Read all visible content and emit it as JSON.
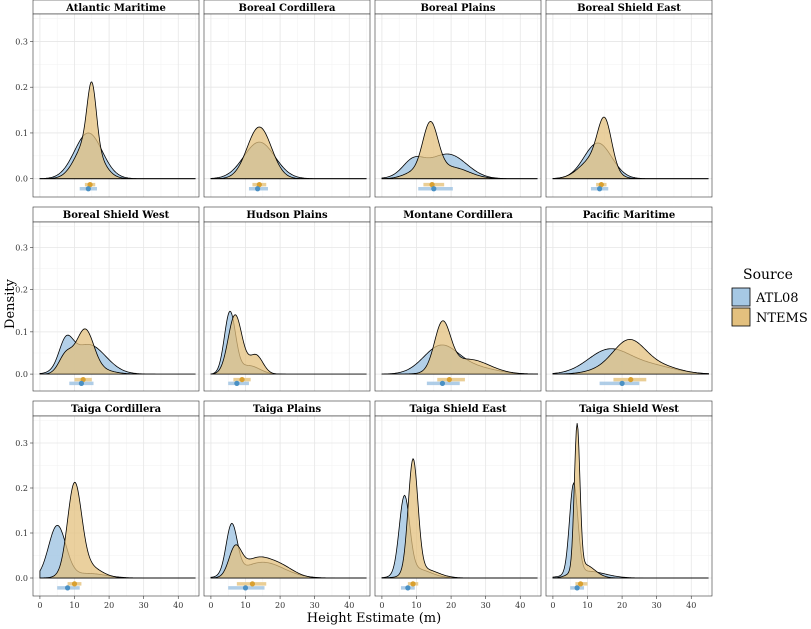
{
  "chart_data": {
    "type": "area",
    "title": "",
    "xlabel": "Height Estimate (m)",
    "ylabel": "Density",
    "xlim": [
      -2,
      46
    ],
    "ylim": [
      -0.04,
      0.36
    ],
    "x_ticks": [
      0,
      10,
      20,
      30,
      40
    ],
    "y_ticks": [
      0.0,
      0.1,
      0.2,
      0.3
    ],
    "y_tick_labels": [
      "0.0",
      "0.1",
      "0.2",
      "0.3"
    ],
    "grid": true,
    "legend": {
      "title": "Source",
      "position": "right",
      "entries": [
        {
          "name": "ATL08",
          "color": "#a6c8e4"
        },
        {
          "name": "NTEMS",
          "color": "#e3c07e"
        }
      ]
    },
    "series_colors": {
      "ATL08": "#a6c8e4",
      "NTEMS": "#e3c07e",
      "ATL08_point": "#4a90c4",
      "NTEMS_point": "#d9a030",
      "ATL08_bar": "#a6c8e4",
      "NTEMS_bar": "#e8c989"
    },
    "panels": [
      {
        "name": "Atlantic Maritime",
        "atl": {
          "comps": [
            [
              14,
              4,
              0.1
            ]
          ]
        },
        "nte": {
          "comps": [
            [
              15,
              1.3,
              0.13
            ],
            [
              14,
              3.5,
              0.085
            ]
          ]
        },
        "summary": {
          "atl": {
            "mean": 14,
            "lo": 11.5,
            "hi": 16.5
          },
          "nte": {
            "mean": 14.5,
            "lo": 13,
            "hi": 16
          }
        }
      },
      {
        "name": "Boreal Cordillera",
        "atl": {
          "comps": [
            [
              14,
              4.5,
              0.08
            ]
          ]
        },
        "nte": {
          "comps": [
            [
              14,
              3.5,
              0.113
            ]
          ]
        },
        "summary": {
          "atl": {
            "mean": 13.5,
            "lo": 11,
            "hi": 16.5
          },
          "nte": {
            "mean": 14,
            "lo": 12,
            "hi": 16
          }
        }
      },
      {
        "name": "Boreal Plains",
        "atl": {
          "comps": [
            [
              9,
              3,
              0.03
            ],
            [
              20,
              5,
              0.042
            ],
            [
              14,
              6,
              0.018
            ]
          ]
        },
        "nte": {
          "comps": [
            [
              14,
              2.2,
              0.11
            ],
            [
              20,
              5,
              0.025
            ],
            [
              9,
              3,
              0.012
            ]
          ]
        },
        "summary": {
          "atl": {
            "mean": 15,
            "lo": 10.5,
            "hi": 20.5
          },
          "nte": {
            "mean": 14.5,
            "lo": 12,
            "hi": 18
          }
        }
      },
      {
        "name": "Boreal Shield East",
        "atl": {
          "comps": [
            [
              13,
              4,
              0.078
            ]
          ]
        },
        "nte": {
          "comps": [
            [
              15,
              2,
              0.1
            ],
            [
              12,
              4,
              0.045
            ]
          ]
        },
        "summary": {
          "atl": {
            "mean": 13.5,
            "lo": 11,
            "hi": 16
          },
          "nte": {
            "mean": 14,
            "lo": 12.5,
            "hi": 15.5
          }
        }
      },
      {
        "name": "Boreal Shield West",
        "atl": {
          "comps": [
            [
              7.5,
              2,
              0.06
            ],
            [
              14,
              5,
              0.07
            ]
          ]
        },
        "nte": {
          "comps": [
            [
              13,
              2.5,
              0.1
            ],
            [
              7.5,
              2,
              0.045
            ],
            [
              17,
              4,
              0.01
            ]
          ]
        },
        "summary": {
          "atl": {
            "mean": 12,
            "lo": 8.5,
            "hi": 15.5
          },
          "nte": {
            "mean": 12.5,
            "lo": 10,
            "hi": 15
          }
        }
      },
      {
        "name": "Hudson Plains",
        "atl": {
          "comps": [
            [
              5.5,
              1.6,
              0.145
            ],
            [
              11,
              3,
              0.02
            ]
          ]
        },
        "nte": {
          "comps": [
            [
              7,
              2,
              0.14
            ],
            [
              13,
              2,
              0.045
            ]
          ]
        },
        "summary": {
          "atl": {
            "mean": 7.5,
            "lo": 5,
            "hi": 11
          },
          "nte": {
            "mean": 9,
            "lo": 6.5,
            "hi": 11.5
          }
        }
      },
      {
        "name": "Montane Cordillera",
        "atl": {
          "comps": [
            [
              17,
              5,
              0.065
            ],
            [
              27,
              6,
              0.015
            ]
          ]
        },
        "nte": {
          "comps": [
            [
              17.5,
              2.3,
              0.11
            ],
            [
              25,
              6,
              0.035
            ]
          ]
        },
        "summary": {
          "atl": {
            "mean": 17.5,
            "lo": 13,
            "hi": 22.5
          },
          "nte": {
            "mean": 19.5,
            "lo": 16,
            "hi": 24
          }
        }
      },
      {
        "name": "Pacific Maritime",
        "atl": {
          "comps": [
            [
              16,
              6,
              0.055
            ],
            [
              28,
              7,
              0.02
            ]
          ]
        },
        "nte": {
          "comps": [
            [
              22,
              4.5,
              0.07
            ],
            [
              30,
              6,
              0.02
            ],
            [
              15,
              5,
              0.01
            ]
          ]
        },
        "summary": {
          "atl": {
            "mean": 20,
            "lo": 13.5,
            "hi": 25
          },
          "nte": {
            "mean": 22.5,
            "lo": 17.5,
            "hi": 27
          }
        }
      },
      {
        "name": "Taiga Cordillera",
        "atl": {
          "comps": [
            [
              5,
              2.5,
              0.115
            ],
            [
              14,
              5,
              0.01
            ]
          ]
        },
        "nte": {
          "comps": [
            [
              10,
              2,
              0.19
            ],
            [
              13,
              4,
              0.03
            ]
          ]
        },
        "summary": {
          "atl": {
            "mean": 8,
            "lo": 5,
            "hi": 11.5
          },
          "nte": {
            "mean": 10,
            "lo": 8,
            "hi": 12
          }
        }
      },
      {
        "name": "Taiga Plains",
        "atl": {
          "comps": [
            [
              6,
              1.6,
              0.11
            ],
            [
              15,
              6,
              0.035
            ]
          ]
        },
        "nte": {
          "comps": [
            [
              7,
              1.8,
              0.06
            ],
            [
              13,
              4,
              0.04
            ],
            [
              20,
              4,
              0.025
            ]
          ]
        },
        "summary": {
          "atl": {
            "mean": 10,
            "lo": 5,
            "hi": 15.5
          },
          "nte": {
            "mean": 12,
            "lo": 7.5,
            "hi": 16
          }
        }
      },
      {
        "name": "Taiga Shield East",
        "atl": {
          "comps": [
            [
              6.5,
              1.5,
              0.17
            ],
            [
              10,
              4,
              0.02
            ]
          ]
        },
        "nte": {
          "comps": [
            [
              9,
              1.4,
              0.25
            ],
            [
              12,
              4,
              0.02
            ]
          ]
        },
        "summary": {
          "atl": {
            "mean": 7.5,
            "lo": 5.5,
            "hi": 9.5
          },
          "nte": {
            "mean": 9,
            "lo": 7.5,
            "hi": 10.5
          }
        }
      },
      {
        "name": "Taiga Shield West",
        "atl": {
          "comps": [
            [
              6,
              1.2,
              0.2
            ],
            [
              10,
              5,
              0.015
            ]
          ]
        },
        "nte": {
          "comps": [
            [
              7,
              0.8,
              0.32
            ],
            [
              9,
              3,
              0.03
            ]
          ]
        },
        "summary": {
          "atl": {
            "mean": 7,
            "lo": 5,
            "hi": 9
          },
          "nte": {
            "mean": 8,
            "lo": 6.5,
            "hi": 10
          }
        }
      }
    ]
  }
}
